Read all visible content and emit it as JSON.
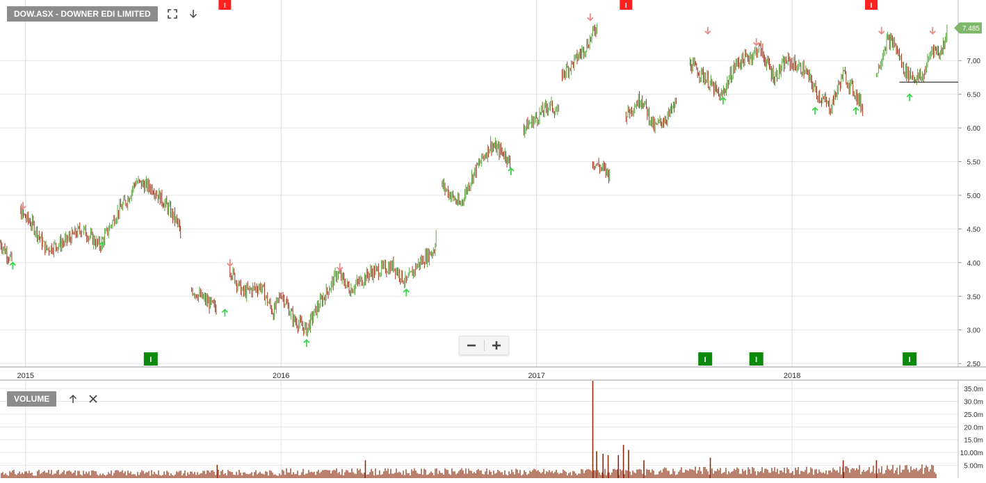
{
  "header": {
    "title": "DOW.ASX - DOWNER EDI LIMITED"
  },
  "volume_panel": {
    "title": "VOLUME"
  },
  "price_tag": "7.485",
  "icons": {
    "expand": "expand-icon",
    "collapse": "arrow-down-icon",
    "move_up": "arrow-up-icon",
    "close": "close-icon",
    "zoom_out": "minus-icon",
    "zoom_in": "plus-icon"
  },
  "colors": {
    "up_bar": "#5aa63e",
    "down_bar": "#a0341b",
    "volume": "#8b2a0c",
    "up_signal": "#3bd44a",
    "down_signal": "#e88a8a",
    "flag_red": "#ff2020",
    "flag_green": "#0a8a0a",
    "price_tag": "#7fb86a",
    "grid": "#e6e6e6"
  },
  "chart_data": [
    {
      "type": "ohlc",
      "title": "DOW.ASX - DOWNER EDI LIMITED",
      "x_ticks": [
        "2015",
        "2016",
        "2017",
        "2018"
      ],
      "y_ticks": [
        "2.50",
        "3.00",
        "3.50",
        "4.00",
        "4.50",
        "5.00",
        "5.50",
        "6.00",
        "6.50",
        "7.00"
      ],
      "ylim": [
        2.45,
        7.9
      ],
      "xlim": [
        2014.9,
        2018.65
      ],
      "last_price": 7.485,
      "grid": true,
      "price_path": [
        [
          2014.9,
          4.3
        ],
        [
          2014.95,
          4.0
        ],
        [
          2014.98,
          4.75
        ],
        [
          2015.03,
          4.55
        ],
        [
          2015.08,
          4.2
        ],
        [
          2015.15,
          4.3
        ],
        [
          2015.22,
          4.5
        ],
        [
          2015.29,
          4.25
        ],
        [
          2015.36,
          4.75
        ],
        [
          2015.4,
          4.95
        ],
        [
          2015.43,
          5.2
        ],
        [
          2015.5,
          5.1
        ],
        [
          2015.56,
          4.8
        ],
        [
          2015.6,
          4.55
        ],
        [
          2015.61,
          4.2
        ],
        [
          2015.65,
          3.6
        ],
        [
          2015.75,
          3.3
        ],
        [
          2015.8,
          3.9
        ],
        [
          2015.85,
          3.55
        ],
        [
          2015.92,
          3.65
        ],
        [
          2015.97,
          3.25
        ],
        [
          2016.0,
          3.55
        ],
        [
          2016.05,
          3.15
        ],
        [
          2016.1,
          3.0
        ],
        [
          2016.13,
          3.25
        ],
        [
          2016.2,
          3.7
        ],
        [
          2016.22,
          3.85
        ],
        [
          2016.27,
          3.6
        ],
        [
          2016.35,
          3.85
        ],
        [
          2016.44,
          3.95
        ],
        [
          2016.49,
          3.7
        ],
        [
          2016.53,
          3.95
        ],
        [
          2016.6,
          4.2
        ],
        [
          2016.61,
          4.55
        ],
        [
          2016.63,
          5.15
        ],
        [
          2016.7,
          4.85
        ],
        [
          2016.75,
          5.3
        ],
        [
          2016.82,
          5.75
        ],
        [
          2016.88,
          5.6
        ],
        [
          2016.9,
          5.4
        ],
        [
          2016.95,
          6.0
        ],
        [
          2017.0,
          6.15
        ],
        [
          2017.05,
          6.35
        ],
        [
          2017.09,
          6.2
        ],
        [
          2017.1,
          6.8
        ],
        [
          2017.14,
          6.95
        ],
        [
          2017.2,
          7.25
        ],
        [
          2017.24,
          7.55
        ],
        [
          2017.22,
          5.5
        ],
        [
          2017.29,
          5.3
        ],
        [
          2017.35,
          6.2
        ],
        [
          2017.41,
          6.45
        ],
        [
          2017.46,
          6.0
        ],
        [
          2017.52,
          6.2
        ],
        [
          2017.55,
          6.4
        ],
        [
          2017.6,
          6.95
        ],
        [
          2017.66,
          6.75
        ],
        [
          2017.72,
          6.45
        ],
        [
          2017.78,
          6.95
        ],
        [
          2017.85,
          7.1
        ],
        [
          2017.87,
          7.2
        ],
        [
          2017.93,
          6.75
        ],
        [
          2017.98,
          7.0
        ],
        [
          2018.05,
          6.85
        ],
        [
          2018.1,
          6.5
        ],
        [
          2018.15,
          6.3
        ],
        [
          2018.2,
          6.8
        ],
        [
          2018.25,
          6.5
        ],
        [
          2018.28,
          6.25
        ],
        [
          2018.33,
          6.8
        ],
        [
          2018.37,
          7.3
        ],
        [
          2018.4,
          7.25
        ],
        [
          2018.44,
          6.85
        ],
        [
          2018.48,
          6.75
        ],
        [
          2018.51,
          6.75
        ],
        [
          2018.55,
          7.2
        ],
        [
          2018.58,
          7.1
        ],
        [
          2018.61,
          7.485
        ]
      ],
      "support_line": {
        "value": 6.68,
        "x_start": 2018.42,
        "x_end": 2018.65
      },
      "signals_up": [
        {
          "x": 2014.95,
          "y": 3.95
        },
        {
          "x": 2015.3,
          "y": 4.25
        },
        {
          "x": 2015.78,
          "y": 3.25
        },
        {
          "x": 2016.1,
          "y": 2.8
        },
        {
          "x": 2016.49,
          "y": 3.55
        },
        {
          "x": 2016.9,
          "y": 5.35
        },
        {
          "x": 2017.73,
          "y": 6.4
        },
        {
          "x": 2018.09,
          "y": 6.25
        },
        {
          "x": 2018.25,
          "y": 6.25
        },
        {
          "x": 2018.46,
          "y": 6.45
        }
      ],
      "signals_down": [
        {
          "x": 2014.99,
          "y": 4.85
        },
        {
          "x": 2015.8,
          "y": 4.0
        },
        {
          "x": 2016.23,
          "y": 3.94
        },
        {
          "x": 2017.21,
          "y": 7.65
        },
        {
          "x": 2017.67,
          "y": 7.45
        },
        {
          "x": 2017.86,
          "y": 7.28
        },
        {
          "x": 2018.35,
          "y": 7.45
        },
        {
          "x": 2018.55,
          "y": 7.45
        }
      ],
      "event_flags_top": [
        {
          "x": 2015.78,
          "label": "I"
        },
        {
          "x": 2017.35,
          "label": "I"
        },
        {
          "x": 2018.31,
          "label": "I"
        }
      ],
      "event_flags_bottom": [
        {
          "x": 2015.49,
          "label": "I"
        },
        {
          "x": 2017.66,
          "label": "I"
        },
        {
          "x": 2017.86,
          "label": "I"
        },
        {
          "x": 2018.46,
          "label": "I"
        }
      ]
    },
    {
      "type": "bar",
      "title": "VOLUME",
      "y_ticks": [
        "5.00m",
        "10.00m",
        "15.0m",
        "20.0m",
        "25.0m",
        "30.0m",
        "35.0m"
      ],
      "ylim": [
        0,
        38
      ],
      "typical_volume_m": [
        2.2,
        2.2,
        2.2,
        2.6,
        2.6,
        2.6,
        2.4,
        3.0,
        3.0,
        3.6
      ],
      "spikes": [
        {
          "x": 2015.75,
          "value": 5.2
        },
        {
          "x": 2016.33,
          "value": 7.0
        },
        {
          "x": 2017.22,
          "value": 38
        },
        {
          "x": 2017.235,
          "value": 10.5
        },
        {
          "x": 2017.26,
          "value": 9.5
        },
        {
          "x": 2017.28,
          "value": 9.0
        },
        {
          "x": 2017.32,
          "value": 9.0
        },
        {
          "x": 2017.34,
          "value": 13.0
        },
        {
          "x": 2017.36,
          "value": 11.0
        },
        {
          "x": 2017.42,
          "value": 7.0
        },
        {
          "x": 2017.68,
          "value": 8.0
        },
        {
          "x": 2018.2,
          "value": 7.0
        },
        {
          "x": 2018.33,
          "value": 7.0
        }
      ]
    }
  ]
}
